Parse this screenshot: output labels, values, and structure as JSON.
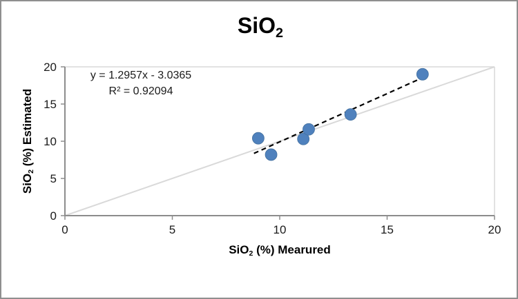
{
  "window": {
    "background": "#ffffff",
    "border_color": "#8f8f8f"
  },
  "chart_data": {
    "type": "scatter",
    "title": {
      "main": "SiO",
      "sub": "2"
    },
    "xlabel": {
      "main": "SiO",
      "sub": "2",
      "rest": " (%) Mearured"
    },
    "ylabel": {
      "main": "SiO",
      "sub": "2",
      "rest": " (%) Estimated"
    },
    "xlim": [
      0,
      20
    ],
    "ylim": [
      0,
      20
    ],
    "x_ticks": [
      0,
      5,
      10,
      15,
      20
    ],
    "y_ticks": [
      0,
      5,
      10,
      15,
      20
    ],
    "grid": false,
    "legend": "none",
    "points": [
      {
        "x": 9.0,
        "y": 10.4
      },
      {
        "x": 9.6,
        "y": 8.2
      },
      {
        "x": 11.1,
        "y": 10.3
      },
      {
        "x": 11.35,
        "y": 11.6
      },
      {
        "x": 13.3,
        "y": 13.6
      },
      {
        "x": 16.65,
        "y": 19.0
      }
    ],
    "marker": {
      "color": "#4f81bd",
      "edge_color": "#44719f",
      "radius": 8.5
    },
    "trendline": {
      "label": "y = 1.2957x - 3.0365",
      "slope": 1.2957,
      "intercept": -3.0365,
      "x_start": 8.8,
      "x_end": 16.7,
      "style": "dashed",
      "color": "#000000"
    },
    "r_squared_label": "R² = 0.92094",
    "reference_line": {
      "from": [
        0,
        0
      ],
      "to": [
        20,
        20
      ],
      "color": "#d9d9d9"
    },
    "axis_color": "#8c8c8c",
    "plot_border_color": "#d9d9d9",
    "tick_label_color": "#1a1a1a"
  }
}
